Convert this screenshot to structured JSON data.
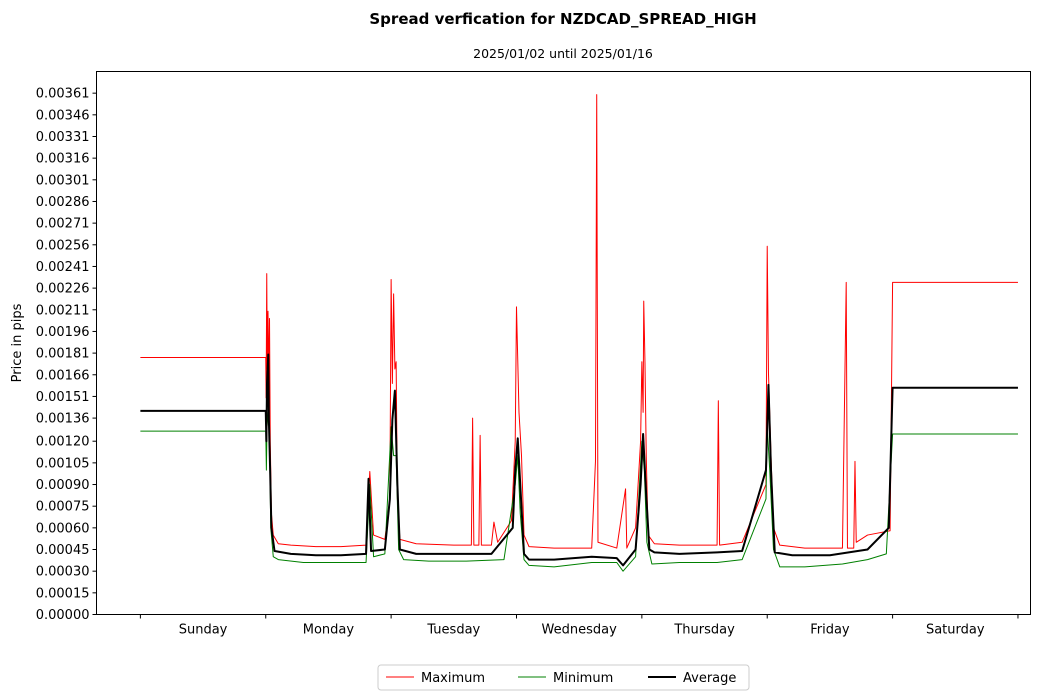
{
  "chart_data": {
    "type": "line",
    "title": "Spread verfication for NZDCAD_SPREAD_HIGH",
    "subtitle": "2025/01/02 until 2025/01/16",
    "xlabel": "",
    "ylabel": "Price in pips",
    "ylim": [
      0,
      0.00376
    ],
    "yticks": [
      "0.00000",
      "0.00015",
      "0.00030",
      "0.00045",
      "0.00060",
      "0.00075",
      "0.00090",
      "0.00105",
      "0.00120",
      "0.00136",
      "0.00151",
      "0.00166",
      "0.00181",
      "0.00196",
      "0.00211",
      "0.00226",
      "0.00241",
      "0.00256",
      "0.00271",
      "0.00286",
      "0.00301",
      "0.00316",
      "0.00331",
      "0.00346",
      "0.00361"
    ],
    "xlim": [
      -0.35,
      7.1
    ],
    "categories": [
      "Sunday",
      "Monday",
      "Tuesday",
      "Wednesday",
      "Thursday",
      "Friday",
      "Saturday"
    ],
    "grid": false,
    "legend_position": "bottom-center",
    "series": [
      {
        "name": "Maximum",
        "color": "#ff0000",
        "points": [
          [
            0,
            0.00178
          ],
          [
            1,
            0.00178
          ],
          [
            1.003,
            0.0015
          ],
          [
            1.008,
            0.00236
          ],
          [
            1.012,
            0.0017
          ],
          [
            1.018,
            0.0021
          ],
          [
            1.024,
            0.0016
          ],
          [
            1.03,
            0.00205
          ],
          [
            1.036,
            0.0012
          ],
          [
            1.045,
            0.0007
          ],
          [
            1.06,
            0.00055
          ],
          [
            1.1,
            0.00049
          ],
          [
            1.2,
            0.00048
          ],
          [
            1.4,
            0.00047
          ],
          [
            1.6,
            0.00047
          ],
          [
            1.8,
            0.00048
          ],
          [
            1.83,
            0.00099
          ],
          [
            1.86,
            0.00055
          ],
          [
            1.95,
            0.00052
          ],
          [
            1.99,
            0.0008
          ],
          [
            2.0,
            0.00232
          ],
          [
            2.01,
            0.0016
          ],
          [
            2.02,
            0.00222
          ],
          [
            2.03,
            0.0017
          ],
          [
            2.04,
            0.00175
          ],
          [
            2.05,
            0.0008
          ],
          [
            2.07,
            0.00052
          ],
          [
            2.2,
            0.00049
          ],
          [
            2.5,
            0.00048
          ],
          [
            2.64,
            0.00048
          ],
          [
            2.65,
            0.00136
          ],
          [
            2.66,
            0.00048
          ],
          [
            2.7,
            0.00048
          ],
          [
            2.71,
            0.00124
          ],
          [
            2.72,
            0.00048
          ],
          [
            2.8,
            0.00048
          ],
          [
            2.82,
            0.00064
          ],
          [
            2.85,
            0.0005
          ],
          [
            2.96,
            0.00065
          ],
          [
            2.99,
            0.0012
          ],
          [
            3.0,
            0.00213
          ],
          [
            3.02,
            0.0014
          ],
          [
            3.04,
            0.0011
          ],
          [
            3.06,
            0.00055
          ],
          [
            3.1,
            0.00047
          ],
          [
            3.3,
            0.00046
          ],
          [
            3.6,
            0.00046
          ],
          [
            3.63,
            0.00106
          ],
          [
            3.64,
            0.0036
          ],
          [
            3.65,
            0.0005
          ],
          [
            3.8,
            0.00046
          ],
          [
            3.87,
            0.00087
          ],
          [
            3.88,
            0.00046
          ],
          [
            3.95,
            0.0006
          ],
          [
            3.99,
            0.0012
          ],
          [
            4.0,
            0.00175
          ],
          [
            4.01,
            0.0014
          ],
          [
            4.015,
            0.00217
          ],
          [
            4.025,
            0.00174
          ],
          [
            4.035,
            0.0011
          ],
          [
            4.05,
            0.00055
          ],
          [
            4.1,
            0.00049
          ],
          [
            4.3,
            0.00048
          ],
          [
            4.6,
            0.00048
          ],
          [
            4.61,
            0.00148
          ],
          [
            4.62,
            0.00048
          ],
          [
            4.8,
            0.0005
          ],
          [
            4.99,
            0.0009
          ],
          [
            5.0,
            0.00255
          ],
          [
            5.01,
            0.00167
          ],
          [
            5.03,
            0.0011
          ],
          [
            5.05,
            0.0006
          ],
          [
            5.1,
            0.00048
          ],
          [
            5.3,
            0.00046
          ],
          [
            5.6,
            0.00046
          ],
          [
            5.63,
            0.0023
          ],
          [
            5.64,
            0.00046
          ],
          [
            5.69,
            0.00046
          ],
          [
            5.7,
            0.00106
          ],
          [
            5.71,
            0.0005
          ],
          [
            5.8,
            0.00055
          ],
          [
            5.98,
            0.00058
          ],
          [
            6.0,
            0.0023
          ],
          [
            7.0,
            0.0023
          ]
        ]
      },
      {
        "name": "Minimum",
        "color": "#008000",
        "points": [
          [
            0,
            0.00127
          ],
          [
            1,
            0.00127
          ],
          [
            1.005,
            0.001
          ],
          [
            1.01,
            0.0013
          ],
          [
            1.02,
            0.0014
          ],
          [
            1.03,
            0.0012
          ],
          [
            1.04,
            0.0006
          ],
          [
            1.06,
            0.0004
          ],
          [
            1.1,
            0.00038
          ],
          [
            1.3,
            0.00036
          ],
          [
            1.5,
            0.00036
          ],
          [
            1.8,
            0.00036
          ],
          [
            1.83,
            0.0009
          ],
          [
            1.86,
            0.0004
          ],
          [
            1.95,
            0.00042
          ],
          [
            2.0,
            0.0013
          ],
          [
            2.02,
            0.0011
          ],
          [
            2.04,
            0.0011
          ],
          [
            2.06,
            0.00045
          ],
          [
            2.1,
            0.00038
          ],
          [
            2.3,
            0.00037
          ],
          [
            2.6,
            0.00037
          ],
          [
            2.9,
            0.00038
          ],
          [
            2.99,
            0.0009
          ],
          [
            3.01,
            0.0011
          ],
          [
            3.03,
            0.0007
          ],
          [
            3.06,
            0.00038
          ],
          [
            3.1,
            0.00034
          ],
          [
            3.3,
            0.00033
          ],
          [
            3.6,
            0.00036
          ],
          [
            3.8,
            0.00036
          ],
          [
            3.85,
            0.0003
          ],
          [
            3.95,
            0.0004
          ],
          [
            4.0,
            0.0012
          ],
          [
            4.02,
            0.001
          ],
          [
            4.04,
            0.0005
          ],
          [
            4.08,
            0.00035
          ],
          [
            4.3,
            0.00036
          ],
          [
            4.6,
            0.00036
          ],
          [
            4.8,
            0.00038
          ],
          [
            4.99,
            0.0008
          ],
          [
            5.0,
            0.0013
          ],
          [
            5.02,
            0.001
          ],
          [
            5.05,
            0.00045
          ],
          [
            5.1,
            0.00033
          ],
          [
            5.3,
            0.00033
          ],
          [
            5.6,
            0.00035
          ],
          [
            5.8,
            0.00038
          ],
          [
            5.95,
            0.00042
          ],
          [
            6.0,
            0.00125
          ],
          [
            7.0,
            0.00125
          ]
        ]
      },
      {
        "name": "Average",
        "color": "#000000",
        "points": [
          [
            0,
            0.00141
          ],
          [
            1,
            0.00141
          ],
          [
            1.005,
            0.0012
          ],
          [
            1.01,
            0.0016
          ],
          [
            1.02,
            0.0018
          ],
          [
            1.025,
            0.00135
          ],
          [
            1.035,
            0.001
          ],
          [
            1.045,
            0.0006
          ],
          [
            1.07,
            0.00044
          ],
          [
            1.2,
            0.00042
          ],
          [
            1.4,
            0.00041
          ],
          [
            1.6,
            0.00041
          ],
          [
            1.8,
            0.00042
          ],
          [
            1.82,
            0.00094
          ],
          [
            1.84,
            0.00044
          ],
          [
            1.95,
            0.00045
          ],
          [
            1.99,
            0.0008
          ],
          [
            2.01,
            0.00135
          ],
          [
            2.03,
            0.00155
          ],
          [
            2.05,
            0.0009
          ],
          [
            2.07,
            0.00045
          ],
          [
            2.2,
            0.00042
          ],
          [
            2.5,
            0.00042
          ],
          [
            2.8,
            0.00042
          ],
          [
            2.97,
            0.0006
          ],
          [
            2.99,
            0.001
          ],
          [
            3.01,
            0.00122
          ],
          [
            3.03,
            0.0009
          ],
          [
            3.06,
            0.00042
          ],
          [
            3.1,
            0.00038
          ],
          [
            3.3,
            0.00038
          ],
          [
            3.6,
            0.0004
          ],
          [
            3.8,
            0.00039
          ],
          [
            3.85,
            0.00034
          ],
          [
            3.95,
            0.00045
          ],
          [
            3.99,
            0.0009
          ],
          [
            4.01,
            0.00125
          ],
          [
            4.03,
            0.0009
          ],
          [
            4.06,
            0.00045
          ],
          [
            4.1,
            0.00043
          ],
          [
            4.3,
            0.00042
          ],
          [
            4.6,
            0.00043
          ],
          [
            4.8,
            0.00044
          ],
          [
            4.99,
            0.001
          ],
          [
            5.01,
            0.00159
          ],
          [
            5.03,
            0.001
          ],
          [
            5.06,
            0.00043
          ],
          [
            5.2,
            0.00041
          ],
          [
            5.5,
            0.00041
          ],
          [
            5.8,
            0.00045
          ],
          [
            5.97,
            0.0006
          ],
          [
            6.0,
            0.00157
          ],
          [
            7.0,
            0.00157
          ]
        ]
      }
    ]
  }
}
